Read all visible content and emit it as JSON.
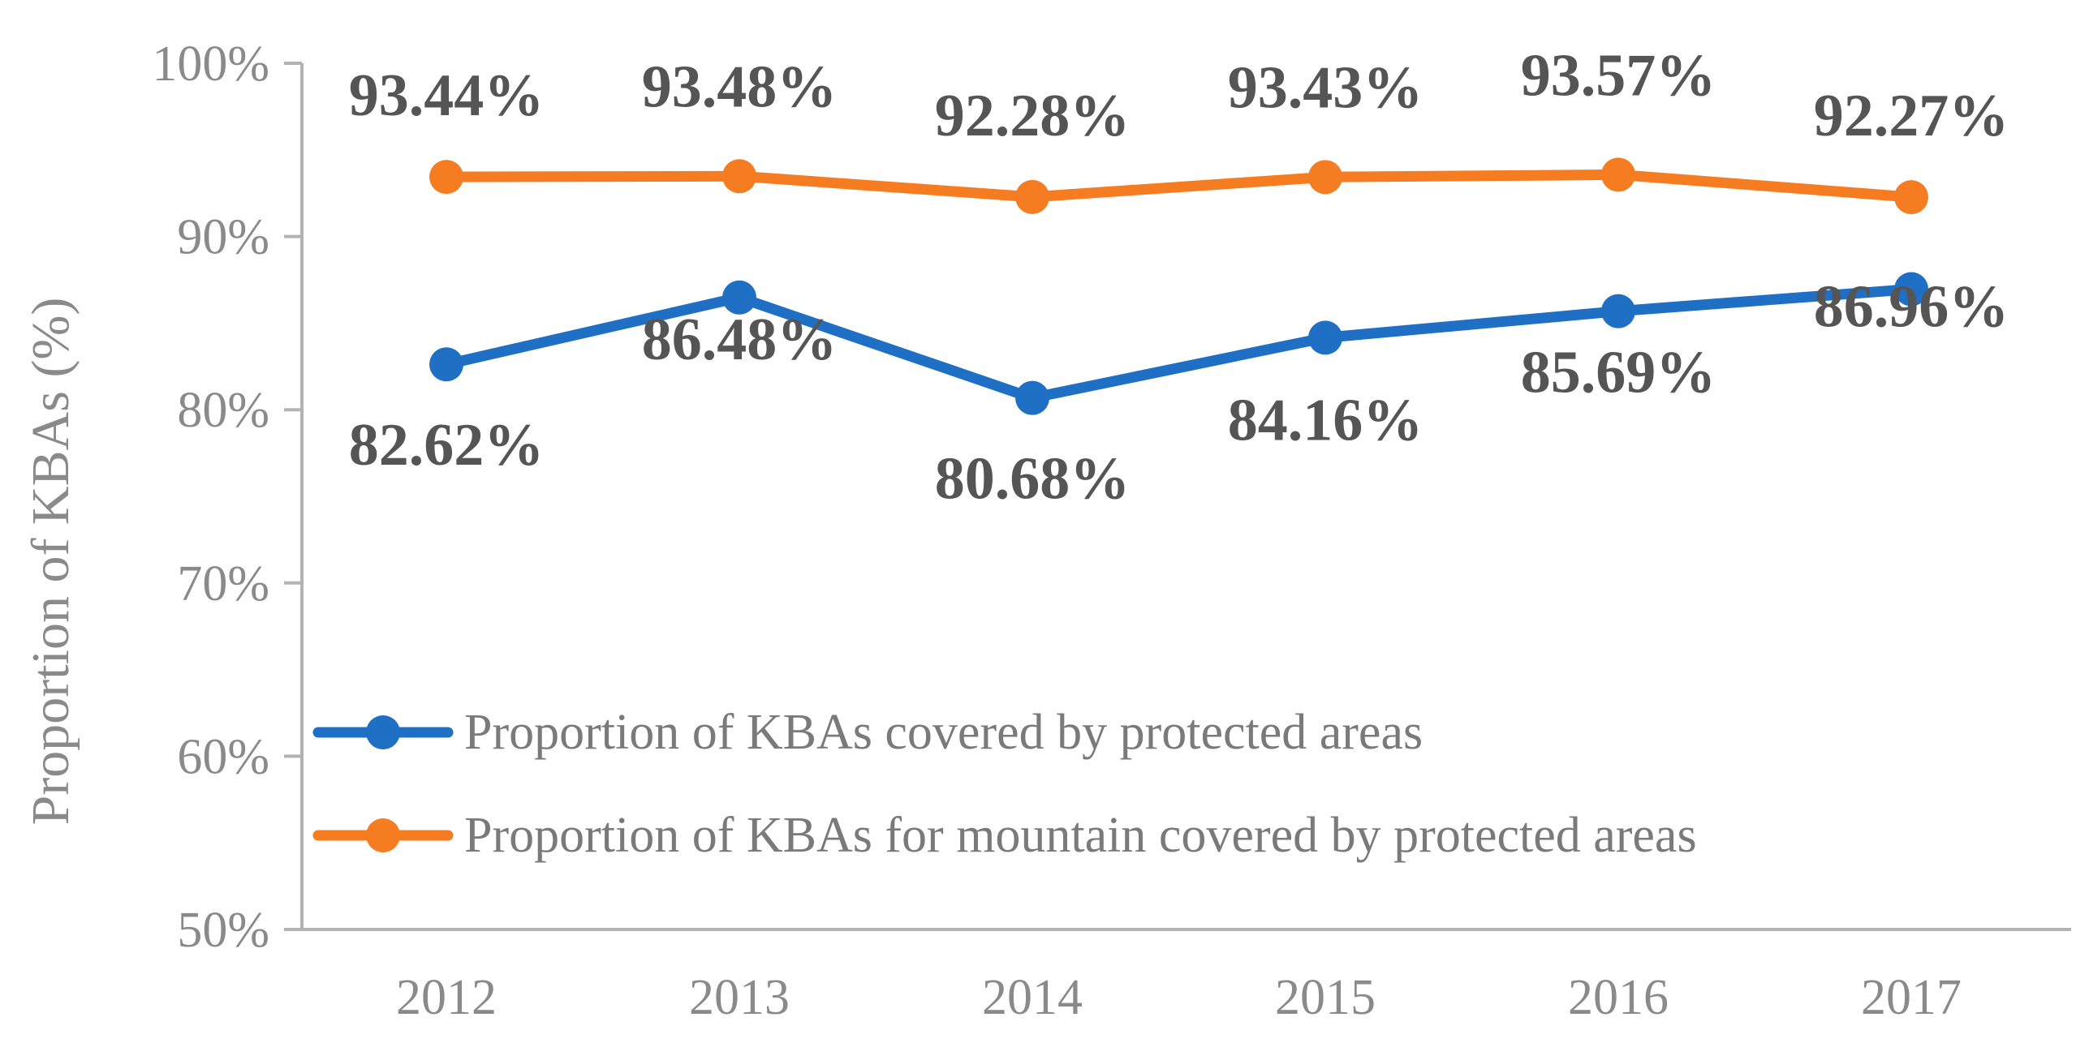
{
  "chart_data": {
    "type": "line",
    "title": "",
    "xlabel": "",
    "ylabel": "Proportion of KBAs (%)",
    "categories": [
      "2012",
      "2013",
      "2014",
      "2015",
      "2016",
      "2017"
    ],
    "ylim": [
      50,
      100
    ],
    "yticks": [
      50,
      60,
      70,
      80,
      90,
      100
    ],
    "ytick_labels": [
      "50%",
      "60%",
      "70%",
      "80%",
      "90%",
      "100%"
    ],
    "grid": false,
    "legend_position": "lower-left",
    "series": [
      {
        "name": "Proportion of KBAs covered by protected areas",
        "color": "#1f6fc5",
        "values": [
          82.62,
          86.48,
          80.68,
          84.16,
          85.69,
          86.96
        ],
        "labels": [
          "82.62%",
          "86.48%",
          "80.68%",
          "84.16%",
          "85.69%",
          "86.96%"
        ],
        "label_position": "below"
      },
      {
        "name": "Proportion of KBAs for mountain covered by protected areas",
        "color": "#f57c21",
        "values": [
          93.44,
          93.48,
          92.28,
          93.43,
          93.57,
          92.27
        ],
        "labels": [
          "93.44%",
          "93.48%",
          "92.28%",
          "93.43%",
          "93.57%",
          "92.27%"
        ],
        "label_position": "above"
      }
    ]
  }
}
